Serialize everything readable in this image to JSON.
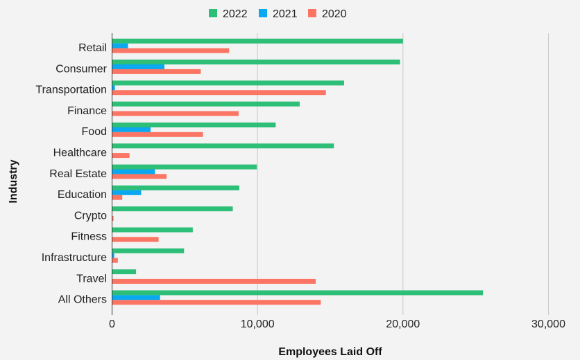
{
  "chart_data": {
    "type": "bar",
    "orientation": "horizontal",
    "categories": [
      "Retail",
      "Consumer",
      "Transportation",
      "Finance",
      "Food",
      "Healthcare",
      "Real Estate",
      "Education",
      "Crypto",
      "Fitness",
      "Infrastructure",
      "Travel",
      "All Others"
    ],
    "series": [
      {
        "name": "2022",
        "color": "#2dbe78",
        "values": [
          20000,
          19800,
          15950,
          12900,
          11250,
          15250,
          9950,
          8750,
          8300,
          5550,
          4950,
          1650,
          25500
        ]
      },
      {
        "name": "2021",
        "color": "#0aa8f0",
        "values": [
          1100,
          3600,
          200,
          0,
          2650,
          0,
          2950,
          2000,
          0,
          0,
          150,
          0,
          3300
        ]
      },
      {
        "name": "2020",
        "color": "#fb7565",
        "values": [
          8050,
          6100,
          14700,
          8700,
          6250,
          1200,
          3750,
          700,
          100,
          3200,
          400,
          14000,
          14350
        ]
      }
    ],
    "xlabel": "Employees Laid Off",
    "ylabel": "Industry",
    "xlim": [
      0,
      30000
    ],
    "xticks": [
      "0",
      "10,000",
      "20,000",
      "30,000"
    ],
    "grid": "vertical",
    "legend": "top-center"
  }
}
